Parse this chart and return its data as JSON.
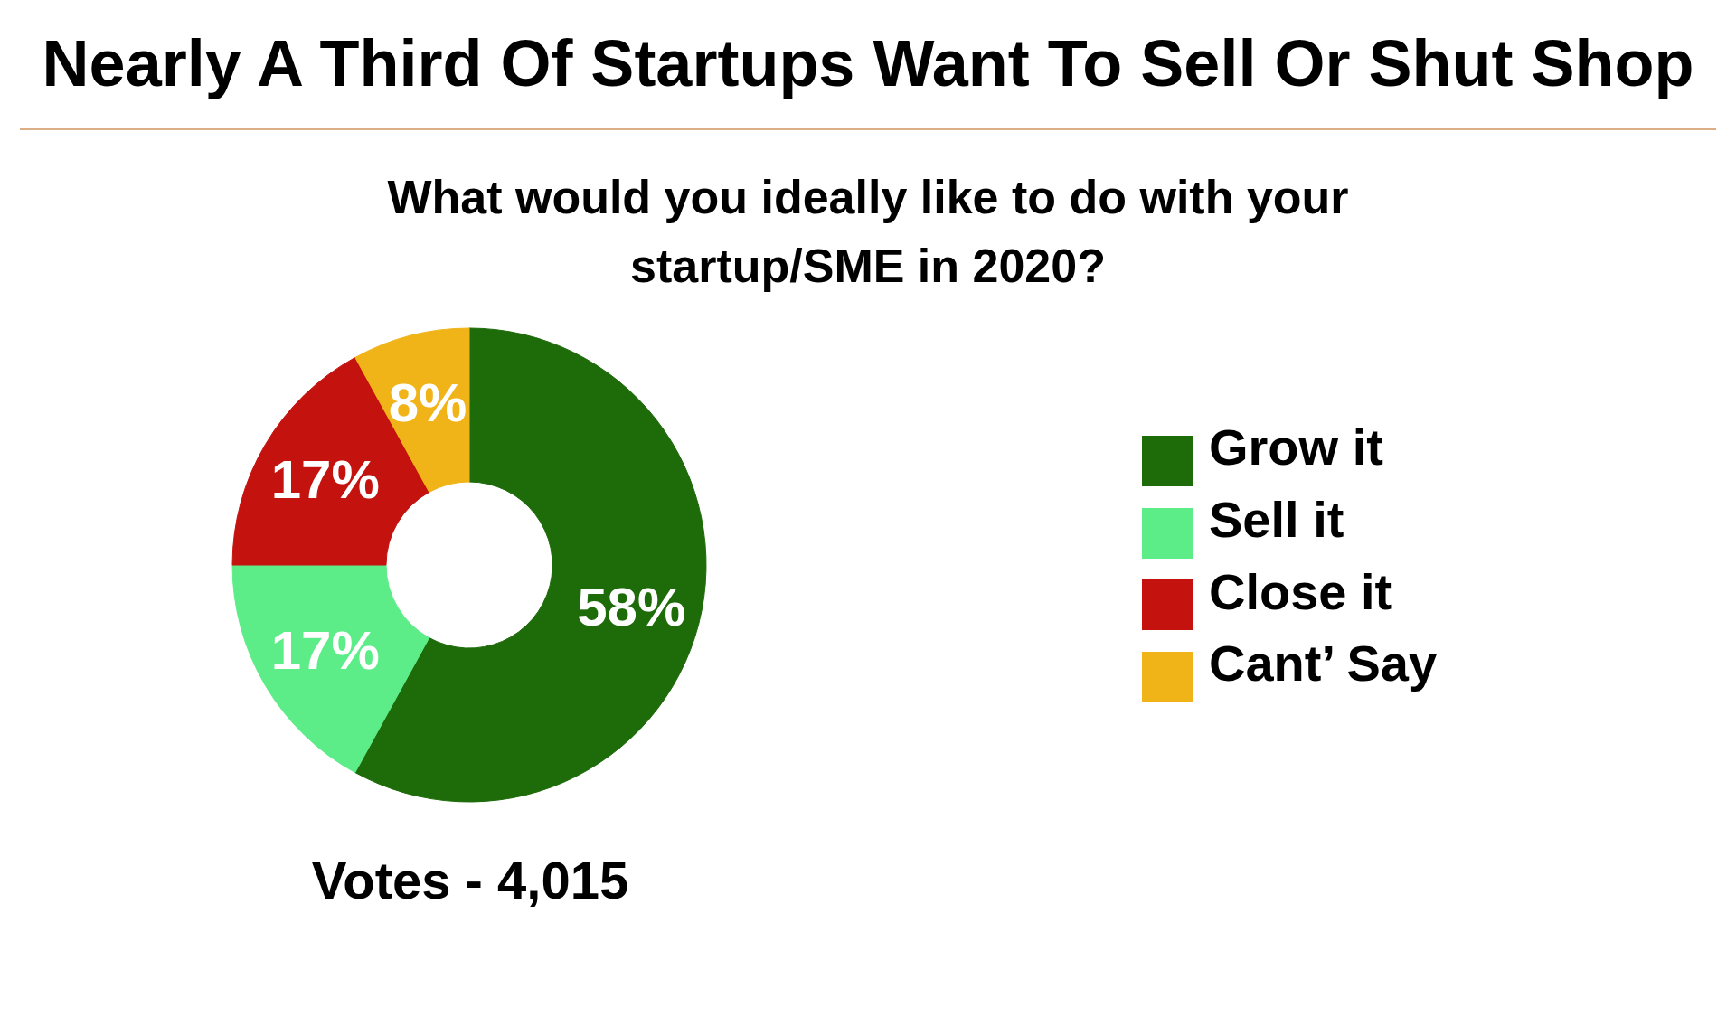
{
  "chart_data": {
    "type": "donut",
    "title": "Nearly A Third Of Startups Want To Sell Or Shut Shop",
    "subtitle": "What would you ideally like to do with your startup/SME in 2020?",
    "categories": [
      "Grow it",
      "Sell it",
      "Close it",
      "Cant’ Say"
    ],
    "values": [
      58,
      17,
      17,
      8
    ],
    "colors": [
      "#1e6b0a",
      "#5ded88",
      "#c4120f",
      "#f0b418"
    ],
    "value_labels": [
      "58%",
      "17%",
      "17%",
      "8%"
    ],
    "legend": "right",
    "annotations": [
      "Votes - 4,015"
    ]
  }
}
